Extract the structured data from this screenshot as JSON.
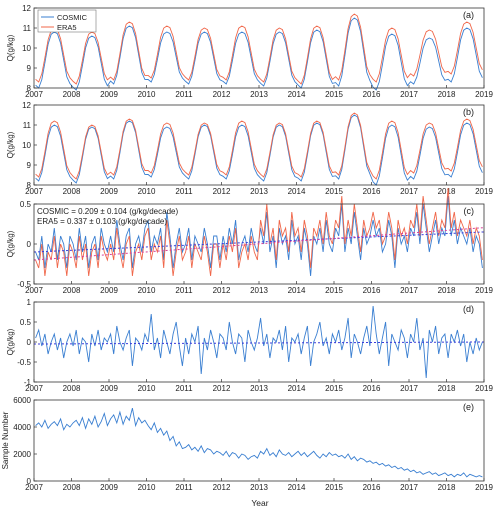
{
  "xlabel": "Year",
  "colors": {
    "cosmic": "#3a7fd1",
    "era5": "#f0674a",
    "cosmic_trend": "#3b3bd9",
    "era5_trend": "#d6409a"
  },
  "legend": {
    "cosmic": "COSMIC",
    "era5": "ERA5"
  },
  "chart_data": [
    {
      "type": "line",
      "panel": "(a)",
      "ylabel": "Q(g/kg)",
      "xlim": [
        2007,
        2019
      ],
      "ylim": [
        8,
        12
      ],
      "x_ticks": [
        2007,
        2008,
        2009,
        2010,
        2011,
        2012,
        2013,
        2014,
        2015,
        2016,
        2017,
        2018,
        2019
      ],
      "y_ticks": [
        8,
        9,
        10,
        11,
        12
      ],
      "legend": "top-left",
      "series": [
        {
          "name": "COSMIC",
          "summer_peak": [
            10.8,
            10.6,
            11.1,
            10.8,
            10.8,
            10.8,
            10.8,
            10.9,
            11.5,
            10.7,
            10.5,
            11.0
          ],
          "winter_min": [
            8.0,
            7.9,
            8.2,
            8.3,
            8.2,
            8.2,
            8.1,
            8.0,
            8.1,
            7.9,
            8.2,
            8.3
          ]
        },
        {
          "name": "ERA5",
          "summer_peak": [
            11.0,
            10.8,
            11.3,
            11.1,
            11.0,
            11.1,
            11.0,
            11.1,
            11.7,
            11.0,
            10.9,
            11.3
          ],
          "winter_min": [
            8.3,
            8.2,
            8.4,
            8.5,
            8.4,
            8.4,
            8.3,
            8.2,
            8.4,
            8.3,
            8.6,
            8.7
          ]
        }
      ]
    },
    {
      "type": "line",
      "panel": "(b)",
      "ylabel": "Q(g/kg)",
      "xlim": [
        2007,
        2019
      ],
      "ylim": [
        8,
        12
      ],
      "x_ticks": [
        2007,
        2008,
        2009,
        2010,
        2011,
        2012,
        2013,
        2014,
        2015,
        2016,
        2017,
        2018,
        2019
      ],
      "y_ticks": [
        8,
        9,
        10,
        11,
        12
      ],
      "series": [
        {
          "name": "COSMIC",
          "summer_peak": [
            11.0,
            10.9,
            11.2,
            10.9,
            11.0,
            11.0,
            11.0,
            11.1,
            11.5,
            11.0,
            10.9,
            11.1
          ],
          "winter_min": [
            8.2,
            8.1,
            8.3,
            8.4,
            8.3,
            8.3,
            8.2,
            8.2,
            8.3,
            8.0,
            8.3,
            8.4
          ]
        },
        {
          "name": "ERA5",
          "summer_peak": [
            11.2,
            11.0,
            11.3,
            11.1,
            11.1,
            11.2,
            11.1,
            11.2,
            11.6,
            11.2,
            11.1,
            11.3
          ],
          "winter_min": [
            8.4,
            8.3,
            8.5,
            8.6,
            8.5,
            8.5,
            8.4,
            8.4,
            8.5,
            8.3,
            8.6,
            8.7
          ]
        }
      ]
    },
    {
      "type": "line",
      "panel": "(c)",
      "ylabel": "Q(g/kg)",
      "xlim": [
        2007,
        2019
      ],
      "ylim": [
        -0.5,
        0.5
      ],
      "x_ticks": [
        2007,
        2008,
        2009,
        2010,
        2011,
        2012,
        2013,
        2014,
        2015,
        2016,
        2017,
        2018,
        2019
      ],
      "y_ticks": [
        -0.5,
        0,
        0.5
      ],
      "annotations": [
        "COSMIC = 0.209 ± 0.104 (g/kg/decade)",
        "ERA5 = 0.337 ± 0.103 (g/kg/decade)"
      ],
      "trends": [
        {
          "name": "COSMIC",
          "slope_per_decade": 0.209,
          "intercept_2007": -0.1
        },
        {
          "name": "ERA5",
          "slope_per_decade": 0.337,
          "intercept_2007": -0.2
        }
      ],
      "series": [
        {
          "name": "COSMIC",
          "values": [
            -0.1,
            -0.2,
            0.1,
            -0.3,
            0.0,
            -0.1,
            0.2,
            -0.2,
            0.1,
            0.0,
            -0.3,
            0.1,
            0.0,
            -0.2,
            0.2,
            -0.1,
            0.1,
            -0.3,
            0.0,
            0.1,
            -0.2,
            0.2,
            0.0,
            -0.1,
            0.1,
            -0.1,
            0.3,
            0.0,
            -0.2,
            0.1,
            0.2,
            -0.3,
            0.0,
            0.1,
            -0.1,
            0.2,
            0.3,
            -0.1,
            0.1,
            0.0,
            0.2,
            -0.2,
            0.4,
            0.1,
            -0.3,
            0.0,
            0.2,
            -0.1,
            0.0,
            0.2,
            -0.2,
            0.1,
            0.0,
            -0.1,
            0.2,
            0.0,
            -0.3,
            0.1,
            0.1,
            -0.2,
            0.1,
            -0.1,
            0.2,
            0.0,
            0.3,
            -0.2,
            0.0,
            0.1,
            -0.1,
            0.2,
            0.0,
            -0.1,
            0.2,
            0.0,
            0.4,
            -0.1,
            0.1,
            -0.3,
            0.2,
            0.0,
            0.1,
            -0.2,
            0.3,
            0.0,
            0.1,
            -0.2,
            0.2,
            0.0,
            -0.4,
            0.1,
            0.0,
            0.2,
            -0.1,
            0.3,
            0.0,
            -0.1,
            0.2,
            0.1,
            0.5,
            -0.1,
            0.2,
            0.0,
            0.4,
            0.1,
            -0.2,
            0.2,
            0.0,
            0.1,
            0.3,
            0.1,
            0.2,
            -0.1,
            0.0,
            0.3,
            0.1,
            -0.3,
            0.2,
            0.0,
            0.1,
            -0.1,
            0.2,
            0.1,
            0.4,
            0.0,
            0.5,
            0.2,
            -0.1,
            0.1,
            0.3,
            0.0,
            0.2,
            0.1,
            0.6,
            0.1,
            0.3,
            0.0,
            0.2,
            0.1,
            0.0,
            0.2,
            -0.1,
            0.1,
            0.0,
            -0.3
          ]
        },
        {
          "name": "ERA5",
          "values": [
            -0.2,
            -0.3,
            0.0,
            -0.4,
            -0.1,
            -0.2,
            0.1,
            -0.3,
            0.0,
            -0.1,
            -0.4,
            0.0,
            -0.1,
            -0.3,
            0.1,
            -0.2,
            0.0,
            -0.4,
            -0.1,
            0.0,
            -0.3,
            0.1,
            -0.1,
            -0.2,
            0.0,
            -0.2,
            0.2,
            -0.1,
            -0.3,
            0.0,
            0.1,
            -0.4,
            -0.1,
            0.0,
            -0.2,
            0.1,
            0.2,
            -0.2,
            0.0,
            -0.1,
            0.1,
            -0.3,
            0.3,
            0.0,
            -0.4,
            -0.1,
            0.1,
            -0.2,
            -0.1,
            0.1,
            -0.3,
            0.0,
            -0.1,
            -0.2,
            0.1,
            -0.1,
            -0.4,
            0.0,
            0.0,
            -0.3,
            0.0,
            -0.2,
            0.1,
            -0.1,
            0.2,
            -0.3,
            -0.1,
            0.0,
            -0.2,
            0.1,
            -0.1,
            -0.2,
            0.3,
            0.1,
            0.5,
            0.0,
            0.2,
            -0.2,
            0.3,
            0.1,
            0.2,
            -0.1,
            0.4,
            0.1,
            0.2,
            -0.1,
            0.3,
            0.1,
            -0.3,
            0.2,
            0.1,
            0.3,
            0.0,
            0.4,
            0.1,
            0.0,
            0.3,
            0.2,
            0.6,
            0.0,
            0.3,
            0.1,
            0.5,
            0.2,
            -0.1,
            0.3,
            0.1,
            0.2,
            0.4,
            0.2,
            0.3,
            0.0,
            0.1,
            0.4,
            0.2,
            -0.2,
            0.3,
            0.1,
            0.2,
            0.0,
            0.3,
            0.2,
            0.5,
            0.1,
            0.6,
            0.3,
            0.0,
            0.2,
            0.4,
            0.1,
            0.3,
            0.2,
            0.7,
            0.2,
            0.4,
            0.1,
            0.3,
            0.2,
            0.1,
            0.3,
            0.0,
            0.2,
            0.1,
            -0.2
          ]
        }
      ]
    },
    {
      "type": "line",
      "panel": "(d)",
      "ylabel": "Q(g/kg)",
      "xlim": [
        2007,
        2019
      ],
      "ylim": [
        -1,
        1
      ],
      "x_ticks": [
        2007,
        2008,
        2009,
        2010,
        2011,
        2012,
        2013,
        2014,
        2015,
        2016,
        2017,
        2018,
        2019
      ],
      "y_ticks": [
        -1,
        -0.5,
        0,
        0.5,
        1
      ],
      "trends": [
        {
          "name": "trend",
          "value_2007": -0.05,
          "value_2019": -0.0
        }
      ],
      "series": [
        {
          "name": "COSMIC",
          "values": [
            0.1,
            0.3,
            -0.1,
            0.2,
            -0.3,
            0.0,
            0.2,
            -0.2,
            0.1,
            -0.4,
            0.0,
            0.2,
            -0.1,
            0.3,
            -0.3,
            0.1,
            0.0,
            -0.5,
            0.2,
            -0.1,
            0.3,
            -0.2,
            0.1,
            0.0,
            0.2,
            -0.3,
            0.4,
            0.0,
            -0.2,
            0.1,
            0.3,
            -0.6,
            0.1,
            0.0,
            -0.2,
            0.2,
            0.0,
            0.7,
            -0.2,
            0.1,
            -0.4,
            0.3,
            0.0,
            -0.3,
            0.2,
            0.5,
            -0.1,
            -0.6,
            0.1,
            -0.3,
            0.2,
            0.0,
            0.4,
            -0.8,
            0.1,
            -0.2,
            0.3,
            0.0,
            -0.4,
            0.2,
            0.1,
            -0.2,
            0.5,
            0.0,
            -0.3,
            0.2,
            0.1,
            -0.5,
            0.3,
            0.0,
            -0.2,
            0.1,
            0.6,
            -0.1,
            0.2,
            -0.4,
            0.1,
            0.0,
            0.3,
            -0.2,
            0.4,
            -0.5,
            0.1,
            0.0,
            0.2,
            -0.3,
            0.1,
            0.4,
            -0.6,
            0.0,
            0.2,
            0.5,
            -0.1,
            0.1,
            -0.3,
            0.2,
            0.0,
            0.3,
            -0.2,
            0.1,
            0.6,
            -0.4,
            0.2,
            0.0,
            -0.3,
            0.1,
            0.4,
            -0.1,
            0.9,
            0.2,
            -0.3,
            0.1,
            0.5,
            -0.6,
            0.2,
            0.0,
            -0.2,
            0.3,
            0.1,
            -0.4,
            0.2,
            0.0,
            0.6,
            -0.2,
            0.1,
            -0.9,
            0.3,
            0.0,
            0.4,
            -0.3,
            0.1,
            0.2,
            -0.4,
            0.2,
            0.0,
            0.3,
            -0.1,
            0.2,
            -0.5,
            0.0,
            -0.3,
            0.1,
            -0.2,
            0.0
          ]
        }
      ]
    },
    {
      "type": "line",
      "panel": "(e)",
      "ylabel": "Sample Number",
      "xlabel": "Year",
      "xlim": [
        2007,
        2019
      ],
      "ylim": [
        0,
        6000
      ],
      "x_ticks": [
        2007,
        2008,
        2009,
        2010,
        2011,
        2012,
        2013,
        2014,
        2015,
        2016,
        2017,
        2018,
        2019
      ],
      "y_ticks": [
        0,
        2000,
        4000,
        6000
      ],
      "series": [
        {
          "name": "COSMIC",
          "values": [
            4100,
            4300,
            4000,
            4500,
            3900,
            4200,
            4400,
            4100,
            4600,
            3800,
            4200,
            4000,
            4300,
            4500,
            4100,
            4700,
            3900,
            4600,
            4200,
            4800,
            4000,
            4400,
            5000,
            4100,
            4600,
            4900,
            4300,
            5100,
            4200,
            4800,
            4500,
            5400,
            4100,
            4700,
            4300,
            4500,
            4100,
            3800,
            4300,
            3600,
            3900,
            3400,
            3700,
            3000,
            3300,
            2600,
            2900,
            2400,
            2500,
            2700,
            2300,
            2500,
            2200,
            2600,
            2100,
            2400,
            2300,
            2000,
            2200,
            2100,
            1900,
            2200,
            1800,
            2100,
            2000,
            1700,
            2000,
            1900,
            1600,
            1800,
            1900,
            1700,
            2200,
            2000,
            2400,
            1900,
            2100,
            1800,
            2300,
            2000,
            1900,
            2100,
            1800,
            2000,
            2200,
            1900,
            2100,
            1800,
            2000,
            2200,
            1900,
            1700,
            2000,
            1800,
            2100,
            1900,
            2000,
            1800,
            1900,
            1700,
            2000,
            1600,
            1800,
            1500,
            1700,
            1600,
            1400,
            1500,
            1300,
            1400,
            1200,
            1300,
            1100,
            1200,
            1000,
            1100,
            900,
            1000,
            800,
            900,
            700,
            800,
            600,
            700,
            500,
            600,
            700,
            500,
            600,
            400,
            500,
            600,
            400,
            500,
            300,
            500,
            400,
            600,
            300,
            500,
            400,
            300,
            400,
            300
          ]
        }
      ]
    }
  ]
}
